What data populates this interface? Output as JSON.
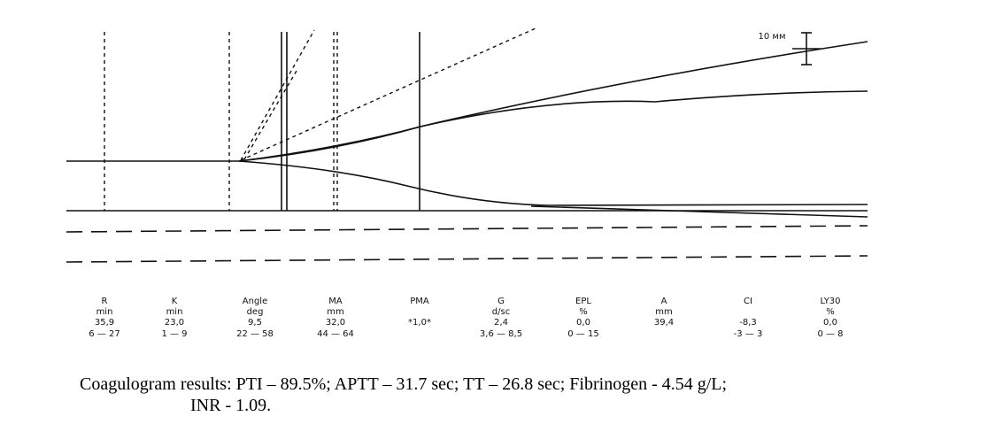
{
  "scale_label": "10 мм",
  "parameters": [
    {
      "name": "R",
      "unit": "min",
      "value": "35,9",
      "range": "6 — 27"
    },
    {
      "name": "K",
      "unit": "min",
      "value": "23,0",
      "range": "1 — 9"
    },
    {
      "name": "Angle",
      "unit": "deg",
      "value": "9,5",
      "range": "22 — 58"
    },
    {
      "name": "MA",
      "unit": "mm",
      "value": "32,0",
      "range": "44 — 64"
    },
    {
      "name": "PMA",
      "value": "*1,0*"
    },
    {
      "name": "G",
      "unit": "d/sc",
      "value": "2,4",
      "range": "3,6 — 8,5"
    },
    {
      "name": "EPL",
      "unit": "%",
      "value": "0,0",
      "range": "0 — 15"
    },
    {
      "name": "A",
      "unit": "mm",
      "value": "39,4"
    },
    {
      "name": "CI",
      "value": "-8,3",
      "range": "-3 — 3"
    },
    {
      "name": "LY30",
      "unit": "%",
      "value": "0,0",
      "range": "0 — 8"
    }
  ],
  "caption": [
    "Coagulogram results: PTI – 89.5%; APTT – 31.7 sec; TT – 26.8 sec; Fibrinogen - 4.54 g/L;",
    "INR - 1.09."
  ]
}
